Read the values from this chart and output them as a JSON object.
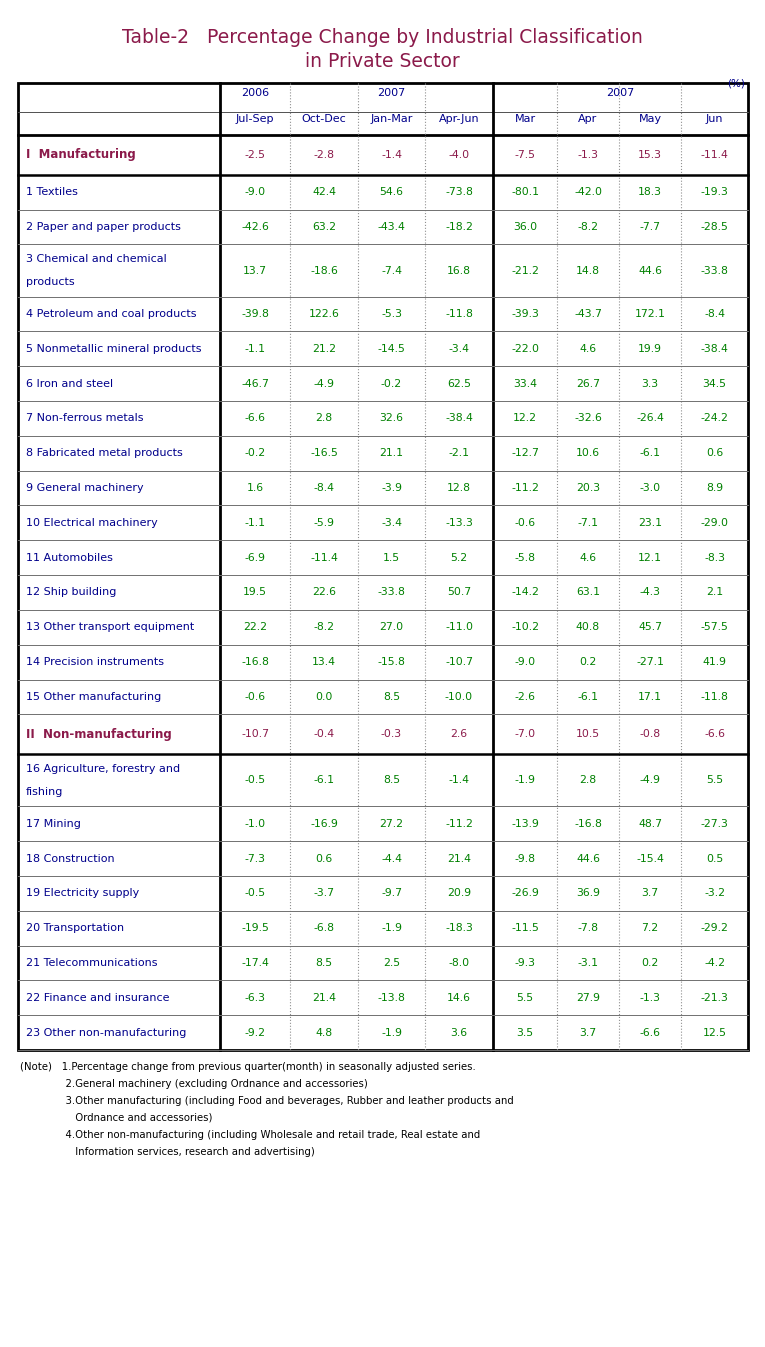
{
  "title_line1": "Table-2   Percentage Change by Industrial Classification",
  "title_line2": "in Private Sector",
  "title_color": "#8B1A4A",
  "percent_label": "(%)",
  "header_color": "#00008B",
  "rows": [
    {
      "label": "I  Manufacturing",
      "label_bold": true,
      "label_color": "#8B1A4A",
      "values": [
        "-2.5",
        "-2.8",
        "-1.4",
        "-4.0",
        "-7.5",
        "-1.3",
        "15.3",
        "-11.4"
      ],
      "value_color": "#8B1A4A",
      "row_type": "category"
    },
    {
      "label": "1 Textiles",
      "label_bold": false,
      "label_color": "#00008B",
      "values": [
        "-9.0",
        "42.4",
        "54.6",
        "-73.8",
        "-80.1",
        "-42.0",
        "18.3",
        "-19.3"
      ],
      "value_color": "#008000",
      "row_type": "item"
    },
    {
      "label": "2 Paper and paper products",
      "label_bold": false,
      "label_color": "#00008B",
      "values": [
        "-42.6",
        "63.2",
        "-43.4",
        "-18.2",
        "36.0",
        "-8.2",
        "-7.7",
        "-28.5"
      ],
      "value_color": "#008000",
      "row_type": "item"
    },
    {
      "label": "3 Chemical and chemical\n  products",
      "label_bold": false,
      "label_color": "#00008B",
      "values": [
        "13.7",
        "-18.6",
        "-7.4",
        "16.8",
        "-21.2",
        "14.8",
        "44.6",
        "-33.8"
      ],
      "value_color": "#008000",
      "row_type": "item2"
    },
    {
      "label": "4 Petroleum and coal products",
      "label_bold": false,
      "label_color": "#00008B",
      "values": [
        "-39.8",
        "122.6",
        "-5.3",
        "-11.8",
        "-39.3",
        "-43.7",
        "172.1",
        "-8.4"
      ],
      "value_color": "#008000",
      "row_type": "item"
    },
    {
      "label": "5 Nonmetallic mineral products",
      "label_bold": false,
      "label_color": "#00008B",
      "values": [
        "-1.1",
        "21.2",
        "-14.5",
        "-3.4",
        "-22.0",
        "4.6",
        "19.9",
        "-38.4"
      ],
      "value_color": "#008000",
      "row_type": "item"
    },
    {
      "label": "6 Iron and steel",
      "label_bold": false,
      "label_color": "#00008B",
      "values": [
        "-46.7",
        "-4.9",
        "-0.2",
        "62.5",
        "33.4",
        "26.7",
        "3.3",
        "34.5"
      ],
      "value_color": "#008000",
      "row_type": "item"
    },
    {
      "label": "7 Non-ferrous metals",
      "label_bold": false,
      "label_color": "#00008B",
      "values": [
        "-6.6",
        "2.8",
        "32.6",
        "-38.4",
        "12.2",
        "-32.6",
        "-26.4",
        "-24.2"
      ],
      "value_color": "#008000",
      "row_type": "item"
    },
    {
      "label": "8 Fabricated metal products",
      "label_bold": false,
      "label_color": "#00008B",
      "values": [
        "-0.2",
        "-16.5",
        "21.1",
        "-2.1",
        "-12.7",
        "10.6",
        "-6.1",
        "0.6"
      ],
      "value_color": "#008000",
      "row_type": "item"
    },
    {
      "label": "9 General machinery",
      "label_bold": false,
      "label_color": "#00008B",
      "values": [
        "1.6",
        "-8.4",
        "-3.9",
        "12.8",
        "-11.2",
        "20.3",
        "-3.0",
        "8.9"
      ],
      "value_color": "#008000",
      "row_type": "item"
    },
    {
      "label": "10 Electrical machinery",
      "label_bold": false,
      "label_color": "#00008B",
      "values": [
        "-1.1",
        "-5.9",
        "-3.4",
        "-13.3",
        "-0.6",
        "-7.1",
        "23.1",
        "-29.0"
      ],
      "value_color": "#008000",
      "row_type": "item"
    },
    {
      "label": "11 Automobiles",
      "label_bold": false,
      "label_color": "#00008B",
      "values": [
        "-6.9",
        "-11.4",
        "1.5",
        "5.2",
        "-5.8",
        "4.6",
        "12.1",
        "-8.3"
      ],
      "value_color": "#008000",
      "row_type": "item"
    },
    {
      "label": "12 Ship building",
      "label_bold": false,
      "label_color": "#00008B",
      "values": [
        "19.5",
        "22.6",
        "-33.8",
        "50.7",
        "-14.2",
        "63.1",
        "-4.3",
        "2.1"
      ],
      "value_color": "#008000",
      "row_type": "item"
    },
    {
      "label": "13 Other transport equipment",
      "label_bold": false,
      "label_color": "#00008B",
      "values": [
        "22.2",
        "-8.2",
        "27.0",
        "-11.0",
        "-10.2",
        "40.8",
        "45.7",
        "-57.5"
      ],
      "value_color": "#008000",
      "row_type": "item"
    },
    {
      "label": "14 Precision instruments",
      "label_bold": false,
      "label_color": "#00008B",
      "values": [
        "-16.8",
        "13.4",
        "-15.8",
        "-10.7",
        "-9.0",
        "0.2",
        "-27.1",
        "41.9"
      ],
      "value_color": "#008000",
      "row_type": "item"
    },
    {
      "label": "15 Other manufacturing",
      "label_bold": false,
      "label_color": "#00008B",
      "values": [
        "-0.6",
        "0.0",
        "8.5",
        "-10.0",
        "-2.6",
        "-6.1",
        "17.1",
        "-11.8"
      ],
      "value_color": "#008000",
      "row_type": "item"
    },
    {
      "label": "II  Non-manufacturing",
      "label_bold": true,
      "label_color": "#8B1A4A",
      "values": [
        "-10.7",
        "-0.4",
        "-0.3",
        "2.6",
        "-7.0",
        "10.5",
        "-0.8",
        "-6.6"
      ],
      "value_color": "#8B1A4A",
      "row_type": "category"
    },
    {
      "label": "16 Agriculture, forestry and\n    fishing",
      "label_bold": false,
      "label_color": "#00008B",
      "values": [
        "-0.5",
        "-6.1",
        "8.5",
        "-1.4",
        "-1.9",
        "2.8",
        "-4.9",
        "5.5"
      ],
      "value_color": "#008000",
      "row_type": "item2"
    },
    {
      "label": "17 Mining",
      "label_bold": false,
      "label_color": "#00008B",
      "values": [
        "-1.0",
        "-16.9",
        "27.2",
        "-11.2",
        "-13.9",
        "-16.8",
        "48.7",
        "-27.3"
      ],
      "value_color": "#008000",
      "row_type": "item"
    },
    {
      "label": "18 Construction",
      "label_bold": false,
      "label_color": "#00008B",
      "values": [
        "-7.3",
        "0.6",
        "-4.4",
        "21.4",
        "-9.8",
        "44.6",
        "-15.4",
        "0.5"
      ],
      "value_color": "#008000",
      "row_type": "item"
    },
    {
      "label": "19 Electricity supply",
      "label_bold": false,
      "label_color": "#00008B",
      "values": [
        "-0.5",
        "-3.7",
        "-9.7",
        "20.9",
        "-26.9",
        "36.9",
        "3.7",
        "-3.2"
      ],
      "value_color": "#008000",
      "row_type": "item"
    },
    {
      "label": "20 Transportation",
      "label_bold": false,
      "label_color": "#00008B",
      "values": [
        "-19.5",
        "-6.8",
        "-1.9",
        "-18.3",
        "-11.5",
        "-7.8",
        "7.2",
        "-29.2"
      ],
      "value_color": "#008000",
      "row_type": "item"
    },
    {
      "label": "21 Telecommunications",
      "label_bold": false,
      "label_color": "#00008B",
      "values": [
        "-17.4",
        "8.5",
        "2.5",
        "-8.0",
        "-9.3",
        "-3.1",
        "0.2",
        "-4.2"
      ],
      "value_color": "#008000",
      "row_type": "item"
    },
    {
      "label": "22 Finance and insurance",
      "label_bold": false,
      "label_color": "#00008B",
      "values": [
        "-6.3",
        "21.4",
        "-13.8",
        "14.6",
        "5.5",
        "27.9",
        "-1.3",
        "-21.3"
      ],
      "value_color": "#008000",
      "row_type": "item"
    },
    {
      "label": "23 Other non-manufacturing",
      "label_bold": false,
      "label_color": "#00008B",
      "values": [
        "-9.2",
        "4.8",
        "-1.9",
        "3.6",
        "3.5",
        "3.7",
        "-6.6",
        "12.5"
      ],
      "value_color": "#008000",
      "row_type": "item"
    }
  ],
  "notes": [
    [
      "(Note)",
      "1.Percentage change from previous quarter(month) in seasonally adjusted series."
    ],
    [
      "",
      "2.General machinery (excluding Ordnance and accessories)"
    ],
    [
      "",
      "3.Other manufacturing (including Food and beverages, Rubber and leather products and"
    ],
    [
      "",
      "   Ordnance and accessories)"
    ],
    [
      "",
      "4.Other non-manufacturing (including Wholesale and retail trade, Real estate and"
    ],
    [
      "",
      "   Information services, research and advertising)"
    ]
  ],
  "bg_color": "#FFFFFF"
}
